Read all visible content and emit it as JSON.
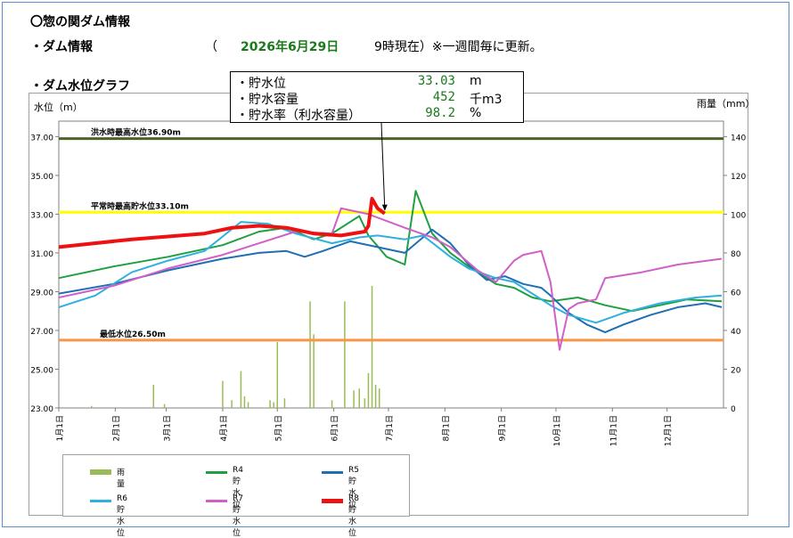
{
  "header": {
    "title": "〇惣の関ダム情報",
    "dam_info_label": "・ダム情報",
    "date_open": "（",
    "date_value": "2026年6月29日",
    "date_time": "9時現在）※一週間毎に更新。",
    "graph_title": "・ダム水位グラフ"
  },
  "info_box": {
    "rows": [
      {
        "label": "・貯水位",
        "value": "33.03",
        "unit": "m"
      },
      {
        "label": "・貯水容量",
        "value": "452",
        "unit": "千m3"
      },
      {
        "label": "・貯水率（利水容量）",
        "value": "98.2",
        "unit": "%"
      }
    ]
  },
  "legend": {
    "items": [
      {
        "label": "雨 量",
        "color": "#9bbb59"
      },
      {
        "label": "R4貯水位",
        "color": "#1fa040"
      },
      {
        "label": "R5貯水位",
        "color": "#1f6fb4"
      },
      {
        "label": "R6貯水位",
        "color": "#2fb0e0"
      },
      {
        "label": "R7貯水位",
        "color": "#d060c8"
      },
      {
        "label": "R8貯水位",
        "color": "#ee1111"
      }
    ]
  },
  "chart_data": {
    "type": "line",
    "ylabel": "水位（m）",
    "y2label": "雨量（mm）",
    "ylim": [
      23.0,
      37.8
    ],
    "y2lim": [
      0,
      148
    ],
    "y_ticks": [
      "23.00",
      "25.00",
      "27.00",
      "29.00",
      "31.00",
      "33.00",
      "35.00",
      "37.00"
    ],
    "y2_ticks": [
      "0",
      "20",
      "40",
      "60",
      "80",
      "100",
      "120",
      "140"
    ],
    "x_ticks": [
      "1月1日",
      "2月1日",
      "3月1日",
      "4月1日",
      "5月1日",
      "6月1日",
      "7月1日",
      "8月1日",
      "9月1日",
      "10月1日",
      "11月1日",
      "12月1日"
    ],
    "x_tick_days": [
      0,
      31,
      59,
      90,
      120,
      151,
      181,
      212,
      243,
      273,
      304,
      334
    ],
    "days_in_year": 365,
    "reference_lines": [
      {
        "label": "洪水時最高水位36.90m",
        "value": 36.9,
        "color": "#4f6228"
      },
      {
        "label": "平常時最高貯水位33.10m",
        "value": 33.1,
        "color": "#ffff00"
      },
      {
        "label": "最低水位26.50m",
        "value": 26.5,
        "color": "#f79646"
      }
    ],
    "annotation_point": {
      "day": 179,
      "value": 33.03
    },
    "series": [
      {
        "name": "R4貯水位",
        "color": "#1fa040",
        "width": 2,
        "points": [
          [
            0,
            29.7
          ],
          [
            30,
            30.3
          ],
          [
            60,
            30.8
          ],
          [
            90,
            31.4
          ],
          [
            110,
            32.1
          ],
          [
            125,
            32.3
          ],
          [
            140,
            31.7
          ],
          [
            150,
            32.0
          ],
          [
            165,
            32.9
          ],
          [
            170,
            31.9
          ],
          [
            180,
            30.8
          ],
          [
            190,
            30.4
          ],
          [
            196,
            34.2
          ],
          [
            205,
            32.0
          ],
          [
            215,
            31.0
          ],
          [
            225,
            30.3
          ],
          [
            240,
            29.4
          ],
          [
            250,
            29.2
          ],
          [
            260,
            28.7
          ],
          [
            270,
            28.5
          ],
          [
            285,
            28.7
          ],
          [
            300,
            28.3
          ],
          [
            315,
            28.0
          ],
          [
            330,
            28.3
          ],
          [
            345,
            28.6
          ],
          [
            364,
            28.5
          ]
        ]
      },
      {
        "name": "R5貯水位",
        "color": "#1f6fb4",
        "width": 2,
        "points": [
          [
            0,
            28.9
          ],
          [
            30,
            29.4
          ],
          [
            60,
            30.1
          ],
          [
            90,
            30.7
          ],
          [
            110,
            31.0
          ],
          [
            125,
            31.1
          ],
          [
            135,
            30.8
          ],
          [
            145,
            31.1
          ],
          [
            160,
            31.6
          ],
          [
            175,
            31.3
          ],
          [
            190,
            31.0
          ],
          [
            205,
            32.2
          ],
          [
            215,
            31.5
          ],
          [
            225,
            30.4
          ],
          [
            235,
            29.6
          ],
          [
            245,
            29.8
          ],
          [
            255,
            29.4
          ],
          [
            265,
            29.2
          ],
          [
            270,
            28.8
          ],
          [
            280,
            27.9
          ],
          [
            290,
            27.3
          ],
          [
            300,
            26.9
          ],
          [
            310,
            27.3
          ],
          [
            325,
            27.8
          ],
          [
            340,
            28.2
          ],
          [
            355,
            28.4
          ],
          [
            364,
            28.2
          ]
        ]
      },
      {
        "name": "R6貯水位",
        "color": "#2fb0e0",
        "width": 2,
        "points": [
          [
            0,
            28.2
          ],
          [
            20,
            28.8
          ],
          [
            40,
            30.0
          ],
          [
            60,
            30.6
          ],
          [
            80,
            31.1
          ],
          [
            100,
            32.6
          ],
          [
            115,
            32.5
          ],
          [
            130,
            32.0
          ],
          [
            150,
            31.5
          ],
          [
            165,
            31.8
          ],
          [
            175,
            31.9
          ],
          [
            190,
            31.7
          ],
          [
            200,
            31.9
          ],
          [
            215,
            30.8
          ],
          [
            225,
            30.2
          ],
          [
            240,
            29.7
          ],
          [
            250,
            29.5
          ],
          [
            260,
            28.9
          ],
          [
            270,
            28.3
          ],
          [
            280,
            27.8
          ],
          [
            295,
            27.4
          ],
          [
            310,
            27.9
          ],
          [
            330,
            28.4
          ],
          [
            350,
            28.7
          ],
          [
            364,
            28.8
          ]
        ]
      },
      {
        "name": "R7貯水位",
        "color": "#d060c8",
        "width": 2,
        "points": [
          [
            0,
            28.7
          ],
          [
            30,
            29.3
          ],
          [
            60,
            30.2
          ],
          [
            90,
            30.9
          ],
          [
            110,
            31.5
          ],
          [
            130,
            32.1
          ],
          [
            150,
            32.0
          ],
          [
            155,
            33.3
          ],
          [
            170,
            33.0
          ],
          [
            190,
            32.3
          ],
          [
            205,
            31.8
          ],
          [
            215,
            31.3
          ],
          [
            230,
            30.1
          ],
          [
            240,
            29.5
          ],
          [
            250,
            30.6
          ],
          [
            255,
            30.9
          ],
          [
            265,
            31.1
          ],
          [
            270,
            29.5
          ],
          [
            275,
            26.0
          ],
          [
            280,
            28.1
          ],
          [
            285,
            28.4
          ],
          [
            295,
            28.6
          ],
          [
            300,
            29.7
          ],
          [
            320,
            30.0
          ],
          [
            340,
            30.4
          ],
          [
            364,
            30.7
          ]
        ]
      },
      {
        "name": "R8貯水位",
        "color": "#ee1111",
        "width": 4,
        "points": [
          [
            0,
            31.3
          ],
          [
            40,
            31.7
          ],
          [
            80,
            32.0
          ],
          [
            95,
            32.3
          ],
          [
            110,
            32.4
          ],
          [
            125,
            32.3
          ],
          [
            140,
            32.0
          ],
          [
            155,
            31.9
          ],
          [
            168,
            32.1
          ],
          [
            170,
            32.4
          ],
          [
            172,
            33.8
          ],
          [
            175,
            33.3
          ],
          [
            179,
            33.03
          ]
        ]
      }
    ],
    "rainfall": [
      [
        18,
        1
      ],
      [
        52,
        12
      ],
      [
        58,
        2
      ],
      [
        90,
        14
      ],
      [
        95,
        4
      ],
      [
        100,
        19
      ],
      [
        102,
        6
      ],
      [
        104,
        3
      ],
      [
        116,
        4
      ],
      [
        118,
        3
      ],
      [
        120,
        34
      ],
      [
        124,
        5
      ],
      [
        138,
        55
      ],
      [
        140,
        38
      ],
      [
        150,
        4
      ],
      [
        157,
        55
      ],
      [
        162,
        9
      ],
      [
        165,
        10
      ],
      [
        168,
        5
      ],
      [
        170,
        18
      ],
      [
        172,
        63
      ],
      [
        174,
        12
      ],
      [
        176,
        10
      ]
    ]
  }
}
